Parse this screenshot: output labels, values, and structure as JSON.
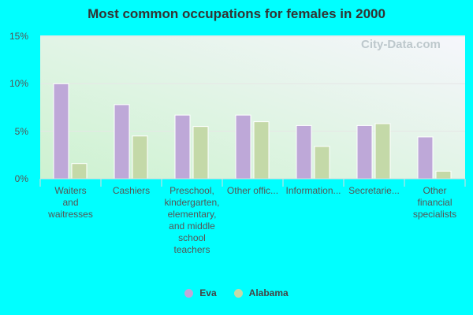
{
  "chart_data": {
    "type": "bar",
    "title": "Most common occupations for females in 2000",
    "categories": [
      "Waiters and waitresses",
      "Cashiers",
      "Preschool, kindergarten, elementary, and middle school teachers",
      "Other offic...",
      "Information...",
      "Secretarie...",
      "Other financial specialists"
    ],
    "category_labels": [
      [
        "Waiters",
        "and",
        "waitresses"
      ],
      [
        "Cashiers"
      ],
      [
        "Preschool,",
        "kindergarten,",
        "elementary,",
        "and middle",
        "school",
        "teachers"
      ],
      [
        "Other offic..."
      ],
      [
        "Information..."
      ],
      [
        "Secretarie..."
      ],
      [
        "Other",
        "financial",
        "specialists"
      ]
    ],
    "series": [
      {
        "name": "Eva",
        "color": "#bea8d8",
        "values": [
          10.0,
          7.8,
          6.7,
          6.7,
          5.6,
          5.6,
          4.4
        ]
      },
      {
        "name": "Alabama",
        "color": "#c4d9a8",
        "values": [
          1.6,
          4.5,
          5.5,
          6.0,
          3.4,
          5.8,
          0.8
        ]
      }
    ],
    "yticks": [
      "0%",
      "5%",
      "10%",
      "15%"
    ],
    "ylim": [
      0,
      15
    ],
    "xlabel": "",
    "ylabel": "",
    "grid": true,
    "legend": "bottom-center",
    "watermark": "City-Data.com"
  }
}
